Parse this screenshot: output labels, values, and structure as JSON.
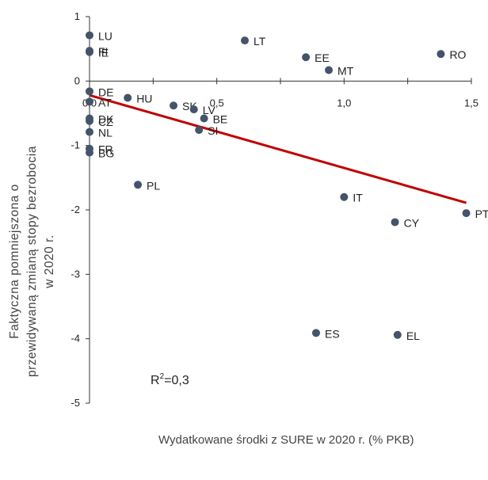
{
  "chart_data": {
    "type": "scatter",
    "xlabel": "Wydatkowane środki z SURE w 2020 r.  (% PKB)",
    "ylabel": [
      "Faktyczna pomniejszona o",
      "przewidywaną zmianą stopy bezrobocia",
      "w 2020 r."
    ],
    "xlim": [
      0,
      1.5
    ],
    "ylim": [
      -5,
      1
    ],
    "xticks": [
      {
        "value": 0,
        "label": "0,0"
      },
      {
        "value": 0.5,
        "label": "0,5"
      },
      {
        "value": 1,
        "label": "1,0"
      },
      {
        "value": 1.5,
        "label": "1,5"
      }
    ],
    "xminor_ticks": [
      0.25,
      0.75,
      1.25
    ],
    "yticks": [
      1,
      0,
      -1,
      -2,
      -3,
      -4,
      -5
    ],
    "color": "#44546a",
    "points": {
      "labels": [
        "LU",
        "FI",
        "IE",
        "LT",
        "EE",
        "MT",
        "RO",
        "DE",
        "AT",
        "HU",
        "SK",
        "LV",
        "BE",
        "SI",
        "DK",
        "CZ",
        "NL",
        "FR",
        "BG",
        "PL",
        "IT",
        "CY",
        "PT",
        "ES",
        "EL"
      ],
      "x": [
        0,
        0,
        0,
        0.61,
        0.85,
        0.94,
        1.38,
        0,
        0,
        0.15,
        0.33,
        0.41,
        0.45,
        0.43,
        0,
        0,
        0,
        0,
        0,
        0.19,
        1.0,
        1.2,
        1.48,
        0.89,
        1.21
      ],
      "y": [
        0.71,
        0.47,
        0.45,
        0.63,
        0.37,
        0.17,
        0.42,
        -0.16,
        -0.32,
        -0.26,
        -0.38,
        -0.44,
        -0.58,
        -0.76,
        -0.58,
        -0.62,
        -0.79,
        -1.05,
        -1.11,
        -1.61,
        -1.8,
        -2.19,
        -2.05,
        -3.91,
        -3.94
      ]
    },
    "trendline": {
      "x": [
        0,
        1.48
      ],
      "y": [
        -0.22,
        -1.89
      ],
      "color": "#c00000"
    },
    "annotation": {
      "base": "R",
      "sup": "2",
      "rest": "=0,3"
    }
  }
}
